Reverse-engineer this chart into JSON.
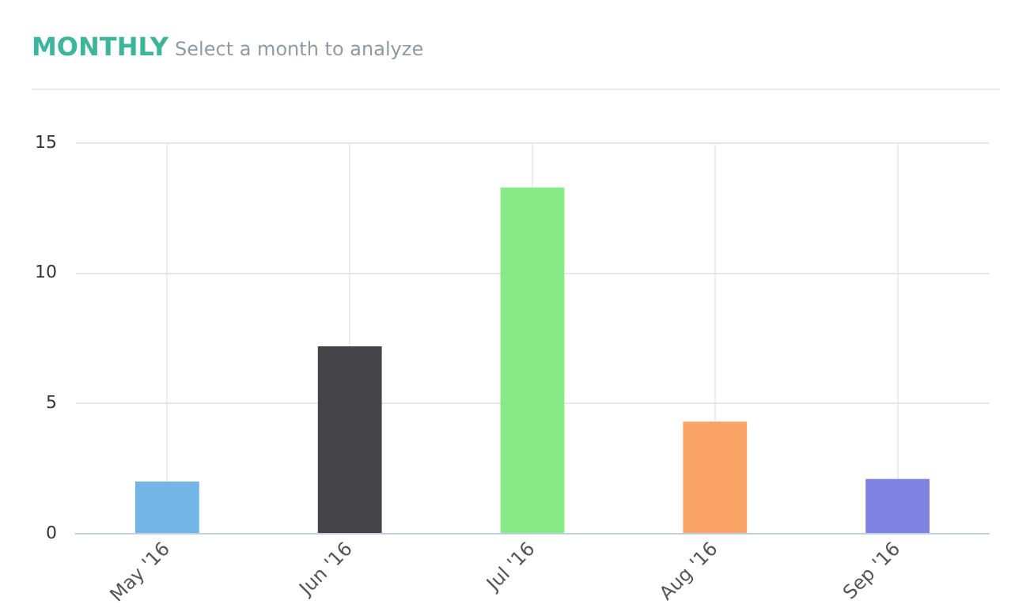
{
  "chart_data": {
    "type": "bar",
    "title": "MONTHLY",
    "subtitle": "Select a month to analyze",
    "categories": [
      "May '16",
      "Jun '16",
      "Jul '16",
      "Aug '16",
      "Sep '16"
    ],
    "values": [
      2.0,
      7.2,
      13.3,
      4.3,
      2.1
    ],
    "colors": [
      "#74b5e8",
      "#444348",
      "#86eb86",
      "#fba468",
      "#7f84e2"
    ],
    "ylim": [
      0,
      15
    ],
    "yticks": [
      0,
      5,
      10,
      15
    ],
    "grid": true
  }
}
